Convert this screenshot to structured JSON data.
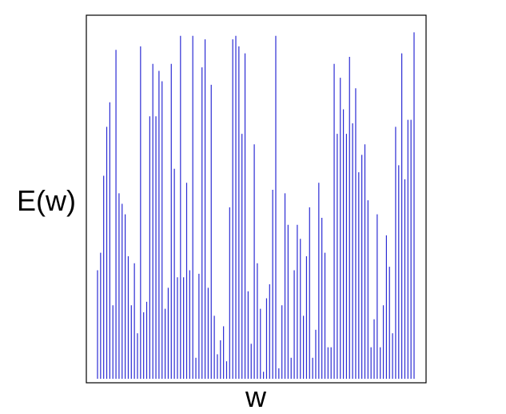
{
  "chart_data": {
    "type": "bar",
    "style": "stem",
    "xlabel": "w",
    "ylabel": "E(w)",
    "x_ticks_shown": false,
    "y_ticks_shown": false,
    "grid": false,
    "series": [
      {
        "color": "#2b2bd4",
        "values": [
          0.31,
          0.36,
          0.58,
          0.72,
          0.79,
          0.21,
          0.94,
          0.53,
          0.5,
          0.47,
          0.35,
          0.21,
          0.33,
          0.13,
          0.95,
          0.19,
          0.22,
          0.75,
          0.9,
          0.75,
          0.88,
          0.85,
          0.2,
          0.26,
          0.9,
          0.6,
          0.29,
          0.98,
          0.29,
          0.56,
          0.31,
          0.98,
          0.06,
          0.3,
          0.89,
          0.97,
          0.26,
          0.84,
          0.18,
          0.07,
          0.11,
          0.15,
          0.05,
          0.49,
          0.97,
          0.98,
          0.95,
          0.7,
          0.93,
          0.25,
          0.1,
          0.67,
          0.33,
          0.2,
          0.02,
          0.23,
          0.27,
          0.54,
          0.98,
          0.03,
          0.21,
          0.53,
          0.44,
          0.06,
          0.31,
          0.44,
          0.4,
          0.18,
          0.35,
          0.49,
          0.06,
          0.14,
          0.56,
          0.46,
          0.36,
          0.09,
          0.09,
          0.9,
          0.7,
          0.86,
          0.77,
          0.7,
          0.92,
          0.73,
          0.83,
          0.59,
          0.64,
          0.67,
          0.51,
          0.09,
          0.17,
          0.47,
          0.09,
          0.21,
          0.41,
          0.32,
          0.13,
          0.72,
          0.61,
          0.93,
          0.57,
          0.74,
          0.74,
          0.99
        ]
      }
    ]
  }
}
